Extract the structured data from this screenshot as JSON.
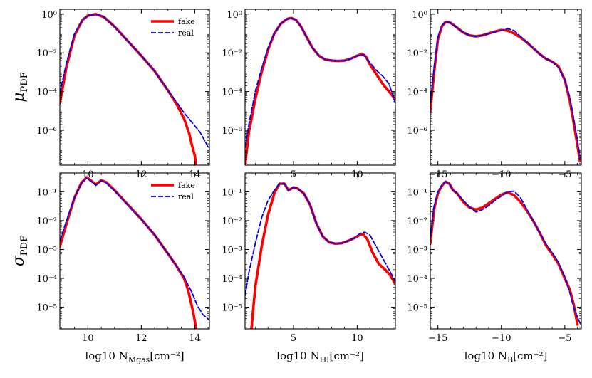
{
  "chart_data": [
    {
      "type": "line",
      "id": "mu-gas",
      "row": "mu",
      "col": 0,
      "ylabel": "μ",
      "ylabel_sub": "PDF",
      "xlabel": "log10 N",
      "xlabel_sub": "Mgas",
      "xlabel_unit": "[cm⁻²]",
      "xlim": [
        8.95,
        14.55
      ],
      "ylim_log10": [
        -7.8,
        0.25
      ],
      "xticks": [
        10,
        12,
        14
      ],
      "xtick_labels": [
        "10",
        "12",
        "14"
      ],
      "yticks_log10": [
        0,
        -2,
        -4,
        -6
      ],
      "ytick_labels": [
        "10^0",
        "10^-2",
        "10^-4",
        "10^-6"
      ],
      "legend": {
        "position": "top-right",
        "entries": [
          "fake",
          "real"
        ]
      },
      "series": [
        {
          "name": "fake",
          "style": "solid",
          "color": "#ff0000",
          "x": [
            8.95,
            9.2,
            9.5,
            9.8,
            10.0,
            10.3,
            10.6,
            11.0,
            11.5,
            12.0,
            12.5,
            13.0,
            13.3,
            13.6,
            13.8,
            13.9,
            14.0,
            14.05
          ],
          "y": [
            -4.6,
            -2.7,
            -1.1,
            -0.3,
            -0.08,
            0.0,
            -0.15,
            -0.65,
            -1.4,
            -2.15,
            -2.95,
            -3.95,
            -4.6,
            -5.4,
            -6.2,
            -6.8,
            -7.3,
            -7.8
          ]
        },
        {
          "name": "real",
          "style": "dashed",
          "color": "#0000ee",
          "x": [
            8.95,
            9.2,
            9.5,
            9.8,
            10.0,
            10.3,
            10.6,
            11.0,
            11.5,
            12.0,
            12.5,
            13.0,
            13.3,
            13.6,
            13.9,
            14.2,
            14.4,
            14.55
          ],
          "y": [
            -4.1,
            -2.5,
            -1.0,
            -0.3,
            -0.08,
            0.0,
            -0.15,
            -0.65,
            -1.4,
            -2.15,
            -2.95,
            -3.95,
            -4.5,
            -5.1,
            -5.6,
            -6.1,
            -6.6,
            -7.0
          ]
        }
      ]
    },
    {
      "type": "line",
      "id": "mu-hi",
      "row": "mu",
      "col": 1,
      "xlabel": "log10 N",
      "xlabel_sub": "HI",
      "xlabel_unit": "[cm⁻²]",
      "xlim": [
        1.2,
        13.0
      ],
      "ylim_log10": [
        -7.8,
        0.25
      ],
      "xticks": [
        5,
        10
      ],
      "xtick_labels": [
        "5",
        "10"
      ],
      "yticks_log10": [
        0,
        -2,
        -4,
        -6
      ],
      "ytick_labels": [
        "10^0",
        "10^-2",
        "10^-4",
        "10^-6"
      ],
      "series": [
        {
          "name": "fake",
          "style": "solid",
          "color": "#ff0000",
          "x": [
            1.2,
            1.5,
            2.0,
            2.5,
            3.0,
            3.5,
            4.0,
            4.5,
            4.8,
            5.2,
            5.6,
            6.0,
            6.5,
            7.0,
            7.5,
            8.0,
            8.5,
            9.0,
            9.5,
            10.0,
            10.4,
            10.7,
            11.0,
            11.5,
            12.0,
            12.5,
            13.0
          ],
          "y": [
            -7.8,
            -6.1,
            -4.4,
            -3.0,
            -1.85,
            -1.0,
            -0.5,
            -0.25,
            -0.2,
            -0.3,
            -0.65,
            -1.15,
            -1.75,
            -2.15,
            -2.35,
            -2.4,
            -2.42,
            -2.4,
            -2.3,
            -2.15,
            -2.05,
            -2.2,
            -2.6,
            -3.1,
            -3.6,
            -4.0,
            -4.4
          ]
        },
        {
          "name": "real",
          "style": "dashed",
          "color": "#0000ee",
          "x": [
            1.2,
            1.5,
            2.0,
            2.5,
            3.0,
            3.5,
            4.0,
            4.5,
            4.8,
            5.2,
            5.6,
            6.0,
            6.5,
            7.0,
            7.5,
            8.0,
            8.5,
            9.0,
            9.5,
            10.0,
            10.5,
            11.0,
            11.5,
            12.0,
            12.5,
            13.0
          ],
          "y": [
            -6.9,
            -5.7,
            -4.0,
            -2.8,
            -1.75,
            -1.0,
            -0.5,
            -0.25,
            -0.2,
            -0.3,
            -0.65,
            -1.15,
            -1.75,
            -2.15,
            -2.35,
            -2.4,
            -2.42,
            -2.4,
            -2.3,
            -2.15,
            -2.1,
            -2.5,
            -2.9,
            -3.2,
            -3.6,
            -4.6
          ]
        }
      ]
    },
    {
      "type": "line",
      "id": "mu-b",
      "row": "mu",
      "col": 2,
      "xlabel": "log10 N",
      "xlabel_sub": "B",
      "xlabel_unit": "[cm⁻²]",
      "xlim": [
        -15.6,
        -3.7
      ],
      "ylim_log10": [
        -7.8,
        0.25
      ],
      "xticks": [
        -15,
        -10,
        -5
      ],
      "xtick_labels": [
        "−15",
        "−10",
        "−5"
      ],
      "yticks_log10": [
        0,
        -2,
        -4,
        -6
      ],
      "ytick_labels": [
        "10^0",
        "10^-2",
        "10^-4",
        "10^-6"
      ],
      "series": [
        {
          "name": "fake",
          "style": "solid",
          "color": "#ff0000",
          "x": [
            -15.6,
            -15.3,
            -15.0,
            -14.7,
            -14.4,
            -14.0,
            -13.5,
            -13.0,
            -12.5,
            -12.0,
            -11.5,
            -11.0,
            -10.5,
            -10.0,
            -9.5,
            -9.0,
            -8.5,
            -8.0,
            -7.5,
            -7.0,
            -6.5,
            -6.0,
            -5.5,
            -5.0,
            -4.6,
            -4.3,
            -4.0,
            -3.8
          ],
          "y": [
            -5.0,
            -3.0,
            -1.3,
            -0.65,
            -0.4,
            -0.45,
            -0.7,
            -0.95,
            -1.1,
            -1.15,
            -1.1,
            -1.0,
            -0.9,
            -0.82,
            -0.85,
            -1.0,
            -1.2,
            -1.45,
            -1.75,
            -2.05,
            -2.3,
            -2.45,
            -2.7,
            -3.4,
            -4.5,
            -5.6,
            -6.8,
            -7.6
          ]
        },
        {
          "name": "real",
          "style": "dashed",
          "color": "#0000ee",
          "x": [
            -15.6,
            -15.3,
            -15.0,
            -14.7,
            -14.4,
            -14.0,
            -13.5,
            -13.0,
            -12.5,
            -12.0,
            -11.5,
            -11.0,
            -10.5,
            -10.0,
            -9.5,
            -9.0,
            -8.5,
            -8.0,
            -7.5,
            -7.0,
            -6.5,
            -6.0,
            -5.5,
            -5.0,
            -4.6,
            -4.3,
            -4.0,
            -3.8
          ],
          "y": [
            -4.6,
            -2.8,
            -1.2,
            -0.6,
            -0.4,
            -0.45,
            -0.7,
            -0.95,
            -1.1,
            -1.15,
            -1.1,
            -1.0,
            -0.92,
            -0.85,
            -0.75,
            -0.85,
            -1.15,
            -1.45,
            -1.75,
            -2.05,
            -2.3,
            -2.45,
            -2.75,
            -3.4,
            -4.3,
            -5.4,
            -6.5,
            -7.5
          ]
        }
      ]
    },
    {
      "type": "line",
      "id": "sigma-gas",
      "row": "sigma",
      "col": 0,
      "ylabel": "σ",
      "ylabel_sub": "PDF",
      "xlabel": "log10 N",
      "xlabel_sub": "Mgas",
      "xlabel_unit": "[cm⁻²]",
      "xlim": [
        8.95,
        14.55
      ],
      "ylim_log10": [
        -5.75,
        -0.35
      ],
      "xticks": [
        10,
        12,
        14
      ],
      "xtick_labels": [
        "10",
        "12",
        "14"
      ],
      "yticks_log10": [
        -1,
        -2,
        -3,
        -4,
        -5
      ],
      "ytick_labels": [
        "10^-1",
        "10^-2",
        "10^-3",
        "10^-4",
        "10^-5"
      ],
      "legend": {
        "position": "top-right",
        "entries": [
          "fake",
          "real"
        ]
      },
      "series": [
        {
          "name": "fake",
          "style": "solid",
          "color": "#ff0000",
          "x": [
            8.95,
            9.2,
            9.5,
            9.75,
            9.95,
            10.1,
            10.3,
            10.5,
            10.7,
            11.0,
            11.5,
            12.0,
            12.5,
            13.0,
            13.3,
            13.6,
            13.75,
            13.85,
            13.95,
            14.05
          ],
          "y": [
            -2.9,
            -2.1,
            -1.2,
            -0.7,
            -0.5,
            -0.6,
            -0.75,
            -0.6,
            -0.68,
            -0.95,
            -1.45,
            -1.95,
            -2.5,
            -3.15,
            -3.55,
            -4.0,
            -4.4,
            -4.8,
            -5.2,
            -5.75
          ]
        },
        {
          "name": "real",
          "style": "dashed",
          "color": "#0000ee",
          "x": [
            8.95,
            9.2,
            9.5,
            9.75,
            9.95,
            10.1,
            10.3,
            10.5,
            10.7,
            11.0,
            11.5,
            12.0,
            12.5,
            13.0,
            13.3,
            13.6,
            13.9,
            14.1,
            14.3,
            14.55
          ],
          "y": [
            -2.7,
            -2.0,
            -1.2,
            -0.72,
            -0.52,
            -0.62,
            -0.78,
            -0.62,
            -0.7,
            -0.97,
            -1.47,
            -1.95,
            -2.5,
            -3.15,
            -3.55,
            -3.95,
            -4.5,
            -4.95,
            -5.25,
            -5.45
          ]
        }
      ]
    },
    {
      "type": "line",
      "id": "sigma-hi",
      "row": "sigma",
      "col": 1,
      "xlabel": "log10 N",
      "xlabel_sub": "HI",
      "xlabel_unit": "[cm⁻²]",
      "xlim": [
        1.2,
        13.0
      ],
      "ylim_log10": [
        -5.75,
        -0.35
      ],
      "xticks": [
        5,
        10
      ],
      "xtick_labels": [
        "5",
        "10"
      ],
      "yticks_log10": [
        -1,
        -2,
        -3,
        -4,
        -5
      ],
      "ytick_labels": [
        "10^-1",
        "10^-2",
        "10^-3",
        "10^-4",
        "10^-5"
      ],
      "series": [
        {
          "name": "fake",
          "style": "solid",
          "color": "#ff0000",
          "x": [
            1.7,
            2.0,
            2.5,
            3.0,
            3.5,
            3.9,
            4.3,
            4.6,
            5.0,
            5.3,
            5.8,
            6.3,
            6.8,
            7.3,
            7.8,
            8.3,
            8.8,
            9.3,
            9.8,
            10.2,
            10.5,
            10.8,
            11.2,
            11.7,
            12.2,
            12.6,
            13.0
          ],
          "y": [
            -5.75,
            -4.3,
            -2.9,
            -1.8,
            -1.05,
            -0.72,
            -0.72,
            -0.95,
            -0.85,
            -0.88,
            -1.05,
            -1.45,
            -2.1,
            -2.55,
            -2.75,
            -2.8,
            -2.78,
            -2.7,
            -2.6,
            -2.5,
            -2.48,
            -2.65,
            -3.1,
            -3.5,
            -3.7,
            -3.9,
            -4.2
          ]
        },
        {
          "name": "real",
          "style": "dashed",
          "color": "#0000ee",
          "x": [
            1.2,
            1.5,
            2.0,
            2.5,
            3.0,
            3.5,
            3.9,
            4.3,
            4.6,
            5.0,
            5.3,
            5.8,
            6.3,
            6.8,
            7.3,
            7.8,
            8.3,
            8.8,
            9.3,
            9.8,
            10.2,
            10.6,
            11.0,
            11.5,
            12.0,
            12.5,
            13.0
          ],
          "y": [
            -4.6,
            -3.8,
            -2.8,
            -1.9,
            -1.3,
            -0.95,
            -0.72,
            -0.72,
            -0.95,
            -0.85,
            -0.88,
            -1.05,
            -1.45,
            -2.1,
            -2.55,
            -2.75,
            -2.8,
            -2.78,
            -2.7,
            -2.6,
            -2.45,
            -2.4,
            -2.5,
            -2.9,
            -3.3,
            -3.7,
            -4.1
          ]
        }
      ]
    },
    {
      "type": "line",
      "id": "sigma-b",
      "row": "sigma",
      "col": 2,
      "xlabel": "log10 N",
      "xlabel_sub": "B",
      "xlabel_unit": "[cm⁻²]",
      "xlim": [
        -15.6,
        -3.7
      ],
      "ylim_log10": [
        -5.75,
        -0.35
      ],
      "xticks": [
        -15,
        -10,
        -5
      ],
      "xtick_labels": [
        "−15",
        "−10",
        "−5"
      ],
      "yticks_log10": [
        -1,
        -2,
        -3,
        -4,
        -5
      ],
      "ytick_labels": [
        "10^-1",
        "10^-2",
        "10^-3",
        "10^-4",
        "10^-5"
      ],
      "series": [
        {
          "name": "fake",
          "style": "solid",
          "color": "#ff0000",
          "x": [
            -15.6,
            -15.3,
            -15.0,
            -14.7,
            -14.4,
            -14.1,
            -13.8,
            -13.5,
            -13.0,
            -12.5,
            -12.0,
            -11.5,
            -11.0,
            -10.5,
            -10.0,
            -9.5,
            -9.0,
            -8.5,
            -8.0,
            -7.5,
            -7.0,
            -6.5,
            -6.0,
            -5.5,
            -5.0,
            -4.6,
            -4.3,
            -4.0
          ],
          "y": [
            -2.8,
            -1.6,
            -1.05,
            -0.8,
            -0.65,
            -0.72,
            -0.95,
            -1.05,
            -1.35,
            -1.55,
            -1.62,
            -1.55,
            -1.4,
            -1.25,
            -1.1,
            -1.02,
            -1.12,
            -1.35,
            -1.65,
            -2.0,
            -2.4,
            -2.85,
            -3.15,
            -3.5,
            -4.0,
            -4.4,
            -4.9,
            -5.6
          ]
        },
        {
          "name": "real",
          "style": "dashed",
          "color": "#0000ee",
          "x": [
            -15.6,
            -15.3,
            -15.0,
            -14.7,
            -14.4,
            -14.1,
            -13.8,
            -13.5,
            -13.0,
            -12.5,
            -12.0,
            -11.5,
            -11.0,
            -10.5,
            -10.0,
            -9.5,
            -9.0,
            -8.5,
            -8.0,
            -7.5,
            -7.0,
            -6.5,
            -6.0,
            -5.5,
            -5.0,
            -4.6,
            -4.3,
            -4.0,
            -3.75
          ],
          "y": [
            -2.6,
            -1.5,
            -1.0,
            -0.78,
            -0.65,
            -0.72,
            -0.95,
            -1.05,
            -1.3,
            -1.52,
            -1.7,
            -1.62,
            -1.48,
            -1.3,
            -1.15,
            -1.0,
            -0.98,
            -1.2,
            -1.6,
            -2.0,
            -2.4,
            -2.8,
            -3.1,
            -3.45,
            -3.95,
            -4.5,
            -5.0,
            -5.35,
            -5.6
          ]
        }
      ]
    }
  ]
}
